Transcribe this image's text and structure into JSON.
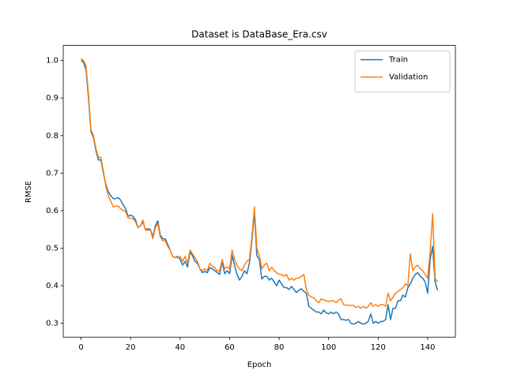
{
  "chart_data": {
    "type": "line",
    "title": "Dataset is DataBase_Era.csv",
    "x_label": "Epoch",
    "y_label": "RMSE",
    "x": [
      0,
      1,
      2,
      3,
      4,
      5,
      6,
      7,
      8,
      9,
      10,
      11,
      12,
      13,
      14,
      15,
      16,
      17,
      18,
      19,
      20,
      21,
      22,
      23,
      24,
      25,
      26,
      27,
      28,
      29,
      30,
      31,
      32,
      33,
      34,
      35,
      36,
      37,
      38,
      39,
      40,
      41,
      42,
      43,
      44,
      45,
      46,
      47,
      48,
      49,
      50,
      51,
      52,
      53,
      54,
      55,
      56,
      57,
      58,
      59,
      60,
      61,
      62,
      63,
      64,
      65,
      66,
      67,
      68,
      69,
      70,
      71,
      72,
      73,
      74,
      75,
      76,
      77,
      78,
      79,
      80,
      81,
      82,
      83,
      84,
      85,
      86,
      87,
      88,
      89,
      90,
      91,
      92,
      93,
      94,
      95,
      96,
      97,
      98,
      99,
      100,
      101,
      102,
      103,
      104,
      105,
      106,
      107,
      108,
      109,
      110,
      111,
      112,
      113,
      114,
      115,
      116,
      117,
      118,
      119,
      120,
      121,
      122,
      123,
      124,
      125,
      126,
      127,
      128,
      129,
      130,
      131,
      132,
      133,
      134,
      135,
      136,
      137,
      138,
      139,
      140,
      141,
      142,
      143,
      144
    ],
    "series": [
      {
        "name": "Train",
        "color": "#1f77b4",
        "values": [
          1.0,
          0.995,
          0.975,
          0.9,
          0.81,
          0.795,
          0.76,
          0.735,
          0.735,
          0.7,
          0.67,
          0.65,
          0.64,
          0.632,
          0.632,
          0.635,
          0.628,
          0.615,
          0.605,
          0.585,
          0.588,
          0.585,
          0.575,
          0.555,
          0.56,
          0.57,
          0.55,
          0.552,
          0.55,
          0.53,
          0.56,
          0.573,
          0.535,
          0.525,
          0.525,
          0.51,
          0.495,
          0.478,
          0.475,
          0.478,
          0.47,
          0.455,
          0.465,
          0.45,
          0.49,
          0.48,
          0.465,
          0.46,
          0.445,
          0.435,
          0.438,
          0.435,
          0.448,
          0.445,
          0.44,
          0.435,
          0.43,
          0.465,
          0.432,
          0.44,
          0.432,
          0.48,
          0.455,
          0.43,
          0.415,
          0.425,
          0.44,
          0.432,
          0.46,
          0.52,
          0.595,
          0.48,
          0.47,
          0.418,
          0.425,
          0.425,
          0.415,
          0.42,
          0.41,
          0.4,
          0.415,
          0.405,
          0.395,
          0.395,
          0.39,
          0.398,
          0.39,
          0.382,
          0.388,
          0.392,
          0.385,
          0.38,
          0.345,
          0.34,
          0.335,
          0.33,
          0.33,
          0.325,
          0.335,
          0.328,
          0.325,
          0.33,
          0.325,
          0.33,
          0.325,
          0.31,
          0.31,
          0.308,
          0.31,
          0.3,
          0.298,
          0.3,
          0.305,
          0.3,
          0.298,
          0.3,
          0.305,
          0.325,
          0.3,
          0.305,
          0.3,
          0.305,
          0.305,
          0.31,
          0.35,
          0.31,
          0.34,
          0.34,
          0.36,
          0.36,
          0.375,
          0.37,
          0.395,
          0.405,
          0.42,
          0.43,
          0.435,
          0.425,
          0.42,
          0.41,
          0.38,
          0.47,
          0.505,
          0.41,
          0.388
        ]
      },
      {
        "name": "Validation",
        "color": "#ff7f0e",
        "values": [
          1.005,
          1.0,
          0.985,
          0.91,
          0.815,
          0.8,
          0.765,
          0.742,
          0.742,
          0.705,
          0.665,
          0.64,
          0.625,
          0.61,
          0.612,
          0.612,
          0.605,
          0.6,
          0.598,
          0.58,
          0.58,
          0.578,
          0.57,
          0.555,
          0.56,
          0.575,
          0.548,
          0.548,
          0.548,
          0.525,
          0.555,
          0.565,
          0.53,
          0.52,
          0.52,
          0.505,
          0.495,
          0.478,
          0.475,
          0.475,
          0.478,
          0.465,
          0.478,
          0.46,
          0.495,
          0.485,
          0.475,
          0.465,
          0.445,
          0.44,
          0.445,
          0.44,
          0.46,
          0.452,
          0.448,
          0.44,
          0.44,
          0.47,
          0.445,
          0.45,
          0.445,
          0.495,
          0.47,
          0.455,
          0.445,
          0.44,
          0.455,
          0.465,
          0.47,
          0.53,
          0.61,
          0.5,
          0.48,
          0.445,
          0.455,
          0.46,
          0.44,
          0.45,
          0.44,
          0.435,
          0.43,
          0.43,
          0.425,
          0.43,
          0.415,
          0.42,
          0.415,
          0.42,
          0.42,
          0.425,
          0.43,
          0.39,
          0.375,
          0.37,
          0.368,
          0.36,
          0.355,
          0.365,
          0.362,
          0.36,
          0.358,
          0.36,
          0.36,
          0.355,
          0.362,
          0.365,
          0.35,
          0.348,
          0.348,
          0.348,
          0.348,
          0.342,
          0.345,
          0.34,
          0.345,
          0.34,
          0.345,
          0.355,
          0.345,
          0.35,
          0.345,
          0.35,
          0.35,
          0.345,
          0.38,
          0.36,
          0.37,
          0.38,
          0.385,
          0.39,
          0.395,
          0.405,
          0.4,
          0.485,
          0.44,
          0.45,
          0.455,
          0.445,
          0.44,
          0.43,
          0.42,
          0.49,
          0.592,
          0.42,
          0.41
        ]
      }
    ],
    "xlim": [
      -7.2,
      151.2
    ],
    "ylim": [
      0.263,
      1.04
    ],
    "xticks": [
      0,
      20,
      40,
      60,
      80,
      100,
      120,
      140
    ],
    "yticks": [
      0.3,
      0.4,
      0.5,
      0.6,
      0.7,
      0.8,
      0.9,
      {
        "value": 1,
        "label": "1.0"
      }
    ],
    "legend": "upper right"
  }
}
